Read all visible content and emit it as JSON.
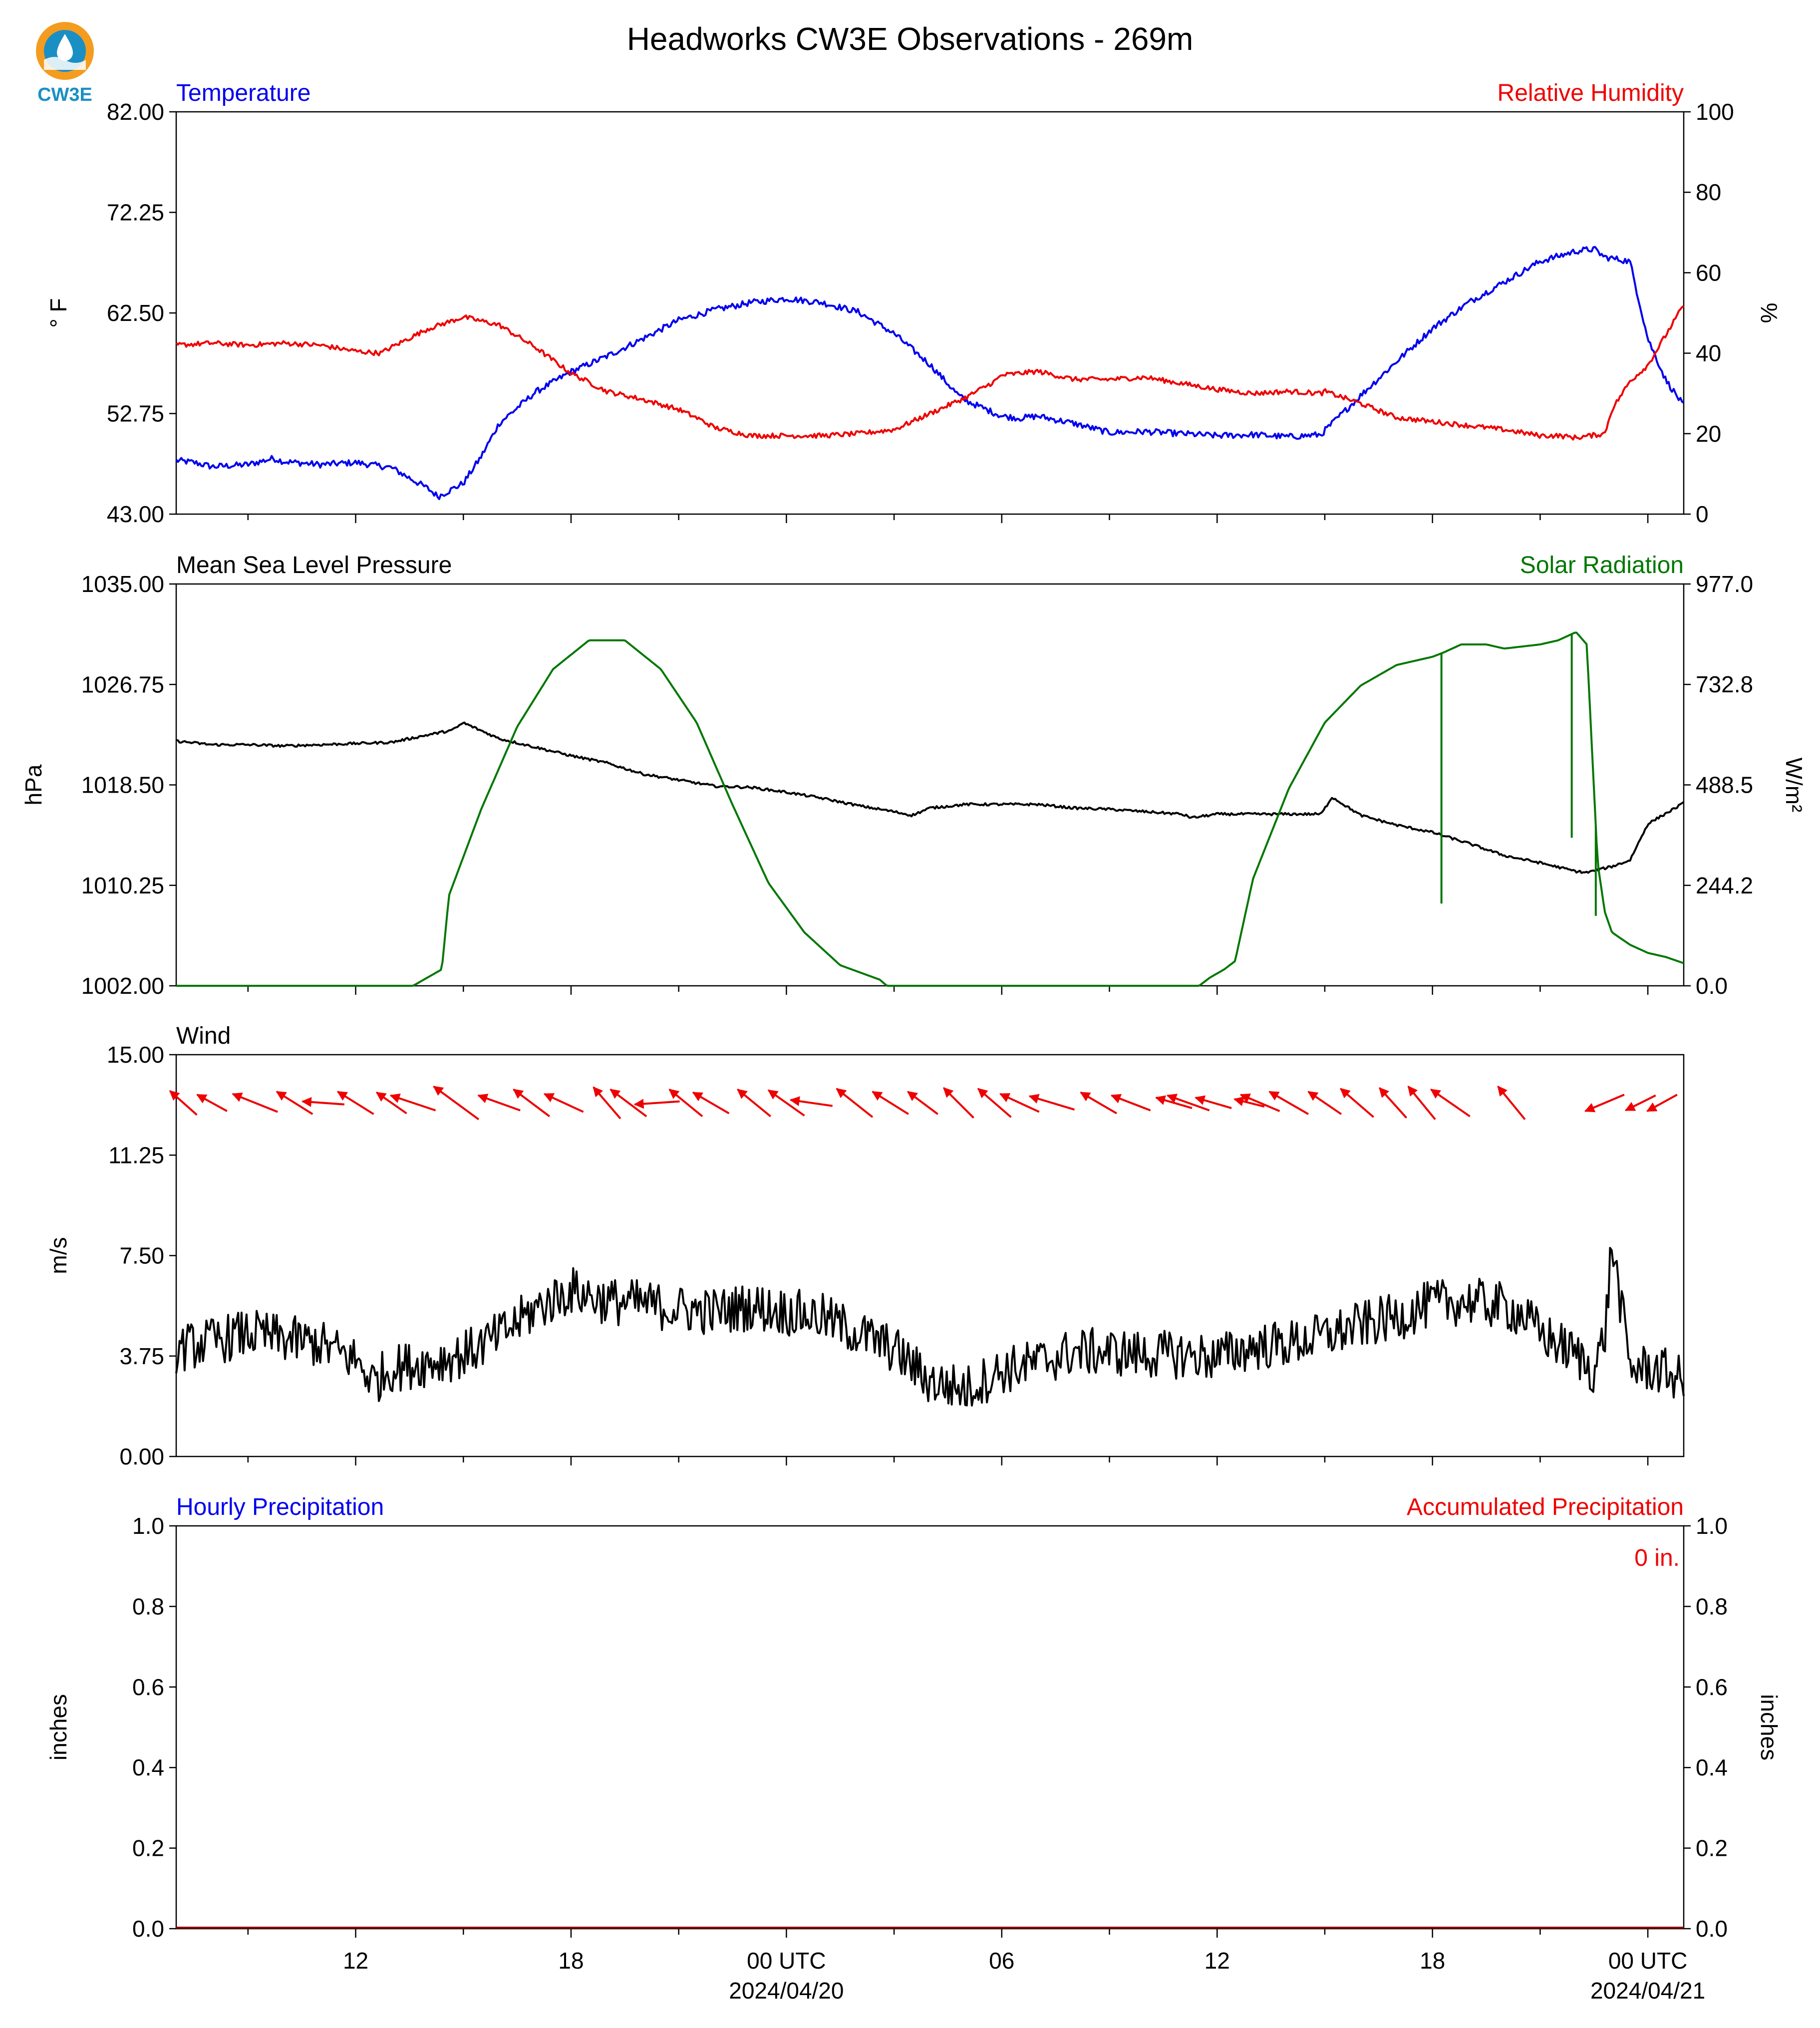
{
  "logo": {
    "text": "CW3E",
    "colors": {
      "ring": "#f39c1f",
      "drop": "#1a8fc4",
      "text": "#1a8fc4"
    }
  },
  "title": "Headworks CW3E Observations - 269m",
  "time_axis": {
    "minor_ticks_hours": [
      6,
      9,
      12,
      15,
      18,
      21,
      24,
      27,
      30,
      33,
      36,
      39,
      42,
      45,
      48,
      51,
      54,
      57
    ],
    "major_labels": [
      {
        "hour": 12,
        "label": "12"
      },
      {
        "hour": 18,
        "label": "18"
      },
      {
        "hour": 24,
        "label": "00 UTC",
        "sub": "2024/04/20"
      },
      {
        "hour": 30,
        "label": "06"
      },
      {
        "hour": 36,
        "label": "12"
      },
      {
        "hour": 42,
        "label": "18"
      },
      {
        "hour": 48,
        "label": "00 UTC",
        "sub": "2024/04/21"
      }
    ],
    "range_hours": [
      7,
      49
    ]
  },
  "chart_data": [
    {
      "type": "line",
      "panel": "temperature-humidity",
      "left_title": "Temperature",
      "right_title": "Relative Humidity",
      "ylabel_left": "° F",
      "ylabel_right": "%",
      "ylim_left": [
        43.0,
        82.0
      ],
      "ylim_right": [
        0,
        100
      ],
      "yticks_left": [
        "43.00",
        "52.75",
        "62.50",
        "72.25",
        "82.00"
      ],
      "yticks_right": [
        "0",
        "20",
        "40",
        "60",
        "80",
        "100"
      ],
      "x_unit": "hours since 2024-04-19 00 UTC",
      "series": [
        {
          "axis": "left",
          "color": "#0000ee",
          "noise": 0.3,
          "x": [
            7,
            7.5,
            8,
            9,
            9.7,
            10,
            11,
            12,
            13,
            14,
            14.3,
            15,
            15.5,
            16,
            17,
            18,
            19,
            20,
            21,
            22,
            23,
            24,
            25,
            26,
            27,
            28,
            28.8,
            29,
            30,
            30.5,
            31,
            32,
            33,
            34,
            35,
            36,
            37,
            38,
            38.9,
            39,
            40,
            41,
            42,
            43,
            44,
            45,
            46,
            46.5,
            46.8,
            47,
            47.5,
            48,
            48.5,
            49
          ],
          "y": [
            48.2,
            48,
            47.6,
            47.8,
            48.4,
            48.1,
            47.8,
            48,
            47.5,
            45.5,
            44.7,
            46,
            48.6,
            51.8,
            54.8,
            56.8,
            58.3,
            60,
            61.8,
            62.8,
            63.5,
            63.9,
            63.5,
            62.6,
            60.5,
            57.5,
            54.5,
            54,
            52.5,
            52.3,
            52.5,
            51.8,
            50.9,
            51,
            50.8,
            50.6,
            50.7,
            50.5,
            50.7,
            51.1,
            54.5,
            57.8,
            61,
            63.5,
            65.5,
            67.5,
            68.5,
            68.7,
            67.9,
            67.8,
            67.5,
            60,
            56,
            53.5
          ]
        },
        {
          "axis": "right",
          "color": "#ee0000",
          "noise": 0.6,
          "x": [
            7,
            8,
            9,
            10,
            11,
            12,
            12.7,
            13,
            14,
            15,
            16,
            17,
            18,
            19,
            20,
            21,
            21.6,
            22,
            23,
            24,
            25,
            26,
            27,
            28,
            29,
            29.8,
            30,
            31,
            32,
            33,
            34,
            35,
            36,
            37,
            38,
            38.9,
            39,
            40,
            41,
            42,
            43,
            44,
            45,
            45.5,
            46,
            46.8,
            47,
            47.5,
            48,
            49
          ],
          "y": [
            42,
            42.5,
            42,
            42.5,
            42,
            40.5,
            40,
            41.5,
            46,
            49,
            47,
            41.5,
            35,
            30.5,
            28.5,
            26,
            23.5,
            21.5,
            19.5,
            19.5,
            19.5,
            20,
            21,
            25,
            29,
            33,
            34.5,
            35.5,
            33.5,
            33.5,
            34,
            32.5,
            31,
            30,
            30.5,
            30,
            30.5,
            27.5,
            24,
            23,
            22,
            21,
            19.5,
            19.5,
            19,
            20,
            26,
            33,
            37,
            52
          ]
        }
      ]
    },
    {
      "type": "line",
      "panel": "pressure-solar",
      "left_title": "Mean Sea Level Pressure",
      "right_title": "Solar Radiation",
      "ylabel_left": "hPa",
      "ylabel_right": "W/m²",
      "ylim_left": [
        1002.0,
        1035.0
      ],
      "ylim_right": [
        0.0,
        977.0
      ],
      "yticks_left": [
        "1002.00",
        "1010.25",
        "1018.50",
        "1026.75",
        "1035.00"
      ],
      "yticks_right": [
        "0.0",
        "244.2",
        "488.5",
        "732.8",
        "977.0"
      ],
      "x_unit": "hours since 2024-04-19 00 UTC",
      "series": [
        {
          "axis": "left",
          "color": "#000000",
          "noise": 0.1,
          "x": [
            7,
            8,
            9,
            10,
            11,
            12,
            13,
            14,
            14.7,
            15,
            16,
            17,
            18,
            19,
            20,
            21,
            22,
            23,
            24,
            25,
            26,
            27,
            27.5,
            28,
            29,
            30,
            31,
            32,
            33,
            34,
            35,
            35.3,
            36,
            37,
            38,
            38.9,
            39.2,
            40,
            41,
            42,
            43,
            44,
            45,
            46,
            46.3,
            47,
            47.5,
            48,
            49
          ],
          "y": [
            1022.1,
            1021.8,
            1021.8,
            1021.7,
            1021.8,
            1021.9,
            1022,
            1022.6,
            1023,
            1023.6,
            1022.3,
            1021.6,
            1020.9,
            1020.3,
            1019.4,
            1018.9,
            1018.4,
            1018.3,
            1017.9,
            1017.4,
            1016.8,
            1016.3,
            1016,
            1016.6,
            1016.9,
            1016.9,
            1016.9,
            1016.6,
            1016.5,
            1016.3,
            1016.1,
            1015.8,
            1016.1,
            1016.1,
            1016.1,
            1016.1,
            1017.5,
            1016,
            1015.2,
            1014.6,
            1013.7,
            1012.7,
            1012.1,
            1011.4,
            1011.3,
            1011.8,
            1012.3,
            1015.3,
            1017
          ]
        },
        {
          "axis": "right",
          "color": "#007700",
          "noise": 0,
          "x": [
            7,
            12,
            13.6,
            14.4,
            14.6,
            15.5,
            16.5,
            17.5,
            18.5,
            19.5,
            20.5,
            21.5,
            22.5,
            23.5,
            24.5,
            25.5,
            26.6,
            26.8,
            27.5,
            28.5,
            34,
            35.5,
            35.8,
            36.2,
            36.5,
            37,
            38,
            39,
            40,
            41,
            42,
            42.3,
            42.8,
            43.5,
            44,
            45,
            45.5,
            46,
            46.3,
            46.6,
            46.8,
            47,
            47.5,
            48,
            48.5,
            49
          ],
          "y": [
            0,
            0,
            0,
            40,
            220,
            430,
            630,
            770,
            840,
            840,
            770,
            640,
            440,
            250,
            130,
            50,
            15,
            0,
            0,
            0,
            0,
            0,
            20,
            40,
            60,
            260,
            480,
            640,
            730,
            780,
            800,
            810,
            830,
            830,
            820,
            830,
            840,
            860,
            830,
            300,
            180,
            130,
            100,
            80,
            70,
            55
          ]
        },
        {
          "axis": "right",
          "color": "#007700",
          "noise": 0,
          "kind": "spikes",
          "x": [
            42.25,
            45.88,
            46.55
          ],
          "y": [
            200,
            360,
            170
          ]
        }
      ]
    },
    {
      "type": "line",
      "panel": "wind",
      "left_title": "Wind",
      "ylabel_left": "m/s",
      "ylim_left": [
        0.0,
        15.0
      ],
      "yticks_left": [
        "0.00",
        "3.75",
        "7.50",
        "11.25",
        "15.00"
      ],
      "x_unit": "hours since 2024-04-19 00 UTC",
      "series": [
        {
          "axis": "left",
          "color": "#000000",
          "noise": 0.9,
          "x": [
            7,
            9,
            11,
            12,
            12.5,
            13,
            14,
            15,
            16,
            17,
            18,
            19,
            20,
            21,
            22,
            23,
            24,
            25,
            26,
            27,
            28,
            29,
            30,
            31,
            32,
            33,
            34,
            35,
            36,
            37,
            38,
            39,
            40,
            41,
            42,
            43,
            44,
            44.5,
            45,
            46,
            46.5,
            46.8,
            47,
            47.5,
            48,
            48.6,
            49
          ],
          "y": [
            4,
            4.6,
            4.2,
            3.6,
            2.8,
            3.3,
            3.5,
            3.8,
            4.5,
            5.5,
            6.2,
            5.8,
            5.7,
            5.5,
            5.4,
            5.6,
            5.4,
            5.2,
            4.6,
            4,
            2.8,
            2.5,
            3.2,
            3.5,
            3.9,
            3.9,
            3.8,
            3.8,
            3.7,
            4.1,
            4.2,
            4.5,
            4.9,
            5.2,
            5.7,
            5.8,
            5.6,
            5.3,
            4.6,
            3.8,
            3.2,
            4.5,
            8,
            3.3,
            3.3,
            3.1,
            2.8
          ]
        }
      ],
      "wind_vectors": [
        {
          "x": 7.2,
          "dx": 0.9,
          "dy": 0.8
        },
        {
          "x": 8.0,
          "dx": 1.0,
          "dy": 0.55
        },
        {
          "x": 9.2,
          "dx": 1.5,
          "dy": 0.6
        },
        {
          "x": 10.3,
          "dx": 1.2,
          "dy": 0.75
        },
        {
          "x": 11.1,
          "dx": 1.4,
          "dy": 0.1
        },
        {
          "x": 12.0,
          "dx": 1.2,
          "dy": 0.75
        },
        {
          "x": 13.0,
          "dx": 1.0,
          "dy": 0.7
        },
        {
          "x": 13.6,
          "dx": 1.5,
          "dy": 0.5
        },
        {
          "x": 14.8,
          "dx": 1.5,
          "dy": 1.1
        },
        {
          "x": 16.0,
          "dx": 1.4,
          "dy": 0.5
        },
        {
          "x": 16.9,
          "dx": 1.2,
          "dy": 0.9
        },
        {
          "x": 17.8,
          "dx": 1.3,
          "dy": 0.6
        },
        {
          "x": 19.0,
          "dx": 0.9,
          "dy": 1.05
        },
        {
          "x": 19.6,
          "dx": 1.2,
          "dy": 0.9
        },
        {
          "x": 20.4,
          "dx": 1.5,
          "dy": -0.1
        },
        {
          "x": 21.2,
          "dx": 1.1,
          "dy": 0.9
        },
        {
          "x": 21.9,
          "dx": 1.2,
          "dy": 0.7
        },
        {
          "x": 23.1,
          "dx": 1.1,
          "dy": 0.9
        },
        {
          "x": 24.0,
          "dx": 1.2,
          "dy": 0.85
        },
        {
          "x": 24.7,
          "dx": 1.4,
          "dy": 0.2
        },
        {
          "x": 25.9,
          "dx": 1.2,
          "dy": 0.95
        },
        {
          "x": 26.9,
          "dx": 1.2,
          "dy": 0.75
        },
        {
          "x": 27.8,
          "dx": 1.0,
          "dy": 0.75
        },
        {
          "x": 28.8,
          "dx": 1.0,
          "dy": 1.0
        },
        {
          "x": 29.8,
          "dx": 1.1,
          "dy": 0.95
        },
        {
          "x": 30.5,
          "dx": 1.3,
          "dy": 0.6
        },
        {
          "x": 31.4,
          "dx": 1.5,
          "dy": 0.45
        },
        {
          "x": 32.7,
          "dx": 1.2,
          "dy": 0.7
        },
        {
          "x": 33.6,
          "dx": 1.3,
          "dy": 0.5
        },
        {
          "x": 34.8,
          "dx": 1.2,
          "dy": 0.35
        },
        {
          "x": 35.2,
          "dx": 1.4,
          "dy": 0.5
        },
        {
          "x": 35.9,
          "dx": 1.2,
          "dy": 0.35
        },
        {
          "x": 36.9,
          "dx": 1.0,
          "dy": 0.25
        },
        {
          "x": 37.2,
          "dx": 1.3,
          "dy": 0.55
        },
        {
          "x": 38.0,
          "dx": 1.3,
          "dy": 0.75
        },
        {
          "x": 39.0,
          "dx": 1.1,
          "dy": 0.75
        },
        {
          "x": 39.9,
          "dx": 1.1,
          "dy": 0.95
        },
        {
          "x": 40.9,
          "dx": 0.9,
          "dy": 1.0
        },
        {
          "x": 41.7,
          "dx": 0.9,
          "dy": 1.1
        },
        {
          "x": 42.5,
          "dx": 1.3,
          "dy": 0.9
        },
        {
          "x": 44.2,
          "dx": 0.9,
          "dy": 1.1
        },
        {
          "x": 46.8,
          "dx": 1.3,
          "dy": -0.55
        },
        {
          "x": 47.8,
          "dx": 1.0,
          "dy": -0.5
        },
        {
          "x": 48.4,
          "dx": 1.0,
          "dy": -0.55
        }
      ]
    },
    {
      "type": "bar",
      "panel": "precipitation",
      "left_title": "Hourly Precipitation",
      "right_title": "Accumulated Precipitation",
      "ylabel_left": "inches",
      "ylabel_right": "inches",
      "ylim_left": [
        0.0,
        1.0
      ],
      "ylim_right": [
        0.0,
        1.0
      ],
      "yticks_left": [
        "0.0",
        "0.2",
        "0.4",
        "0.6",
        "0.8",
        "1.0"
      ],
      "yticks_right": [
        "0.0",
        "0.2",
        "0.4",
        "0.6",
        "0.8",
        "1.0"
      ],
      "accumulated_label": "0 in.",
      "hourly_values": [],
      "accumulated": 0
    }
  ]
}
